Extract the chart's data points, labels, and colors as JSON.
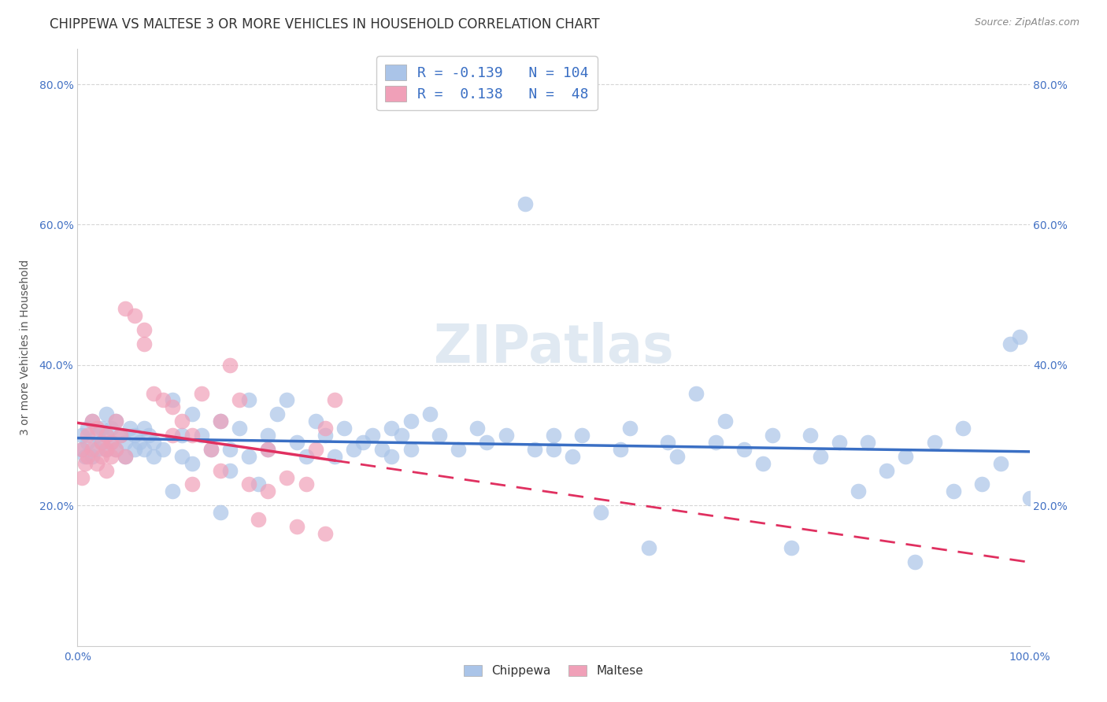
{
  "title": "CHIPPEWA VS MALTESE 3 OR MORE VEHICLES IN HOUSEHOLD CORRELATION CHART",
  "source_text": "Source: ZipAtlas.com",
  "ylabel": "3 or more Vehicles in Household",
  "xlim": [
    0.0,
    1.0
  ],
  "ylim": [
    0.0,
    0.85
  ],
  "ytick_positions": [
    0.2,
    0.4,
    0.6,
    0.8
  ],
  "ytick_labels": [
    "20.0%",
    "40.0%",
    "60.0%",
    "80.0%"
  ],
  "watermark": "ZIPatlas",
  "legend_blue_r": "-0.139",
  "legend_blue_n": "104",
  "legend_pink_r": "0.138",
  "legend_pink_n": "48",
  "chippewa_color": "#aac4e8",
  "maltese_color": "#f0a0b8",
  "trend_blue_color": "#3a6fc4",
  "trend_pink_color": "#e03060",
  "grid_color": "#cccccc",
  "background_color": "#ffffff",
  "title_fontsize": 12,
  "axis_label_fontsize": 10,
  "tick_fontsize": 10,
  "legend_fontsize": 13,
  "watermark_fontsize": 48,
  "watermark_color": "#c8d8e8",
  "watermark_alpha": 0.55,
  "legend_text_color": "#3a6fc4"
}
